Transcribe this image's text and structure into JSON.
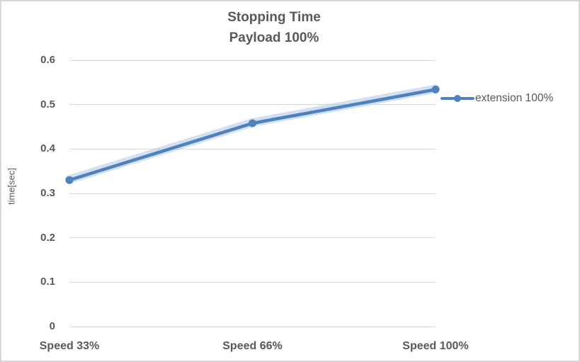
{
  "title": {
    "line1": "Stopping Time",
    "line2": "Payload 100%"
  },
  "axes": {
    "y_title": "time[sec]"
  },
  "legend": {
    "label": "extension 100%"
  },
  "colors": {
    "series": "#4F81BD",
    "series_glow": "#AFC7E5",
    "gridline": "#D9D9D9",
    "text": "#595959",
    "border": "#D7D7D7",
    "background": "#FFFFFF"
  },
  "chart_data": {
    "type": "line",
    "title": "Stopping Time",
    "subtitle": "Payload 100%",
    "categories": [
      "Speed 33%",
      "Speed 66%",
      "Speed 100%"
    ],
    "series": [
      {
        "name": "extension 100%",
        "values": [
          0.33,
          0.458,
          0.534
        ]
      }
    ],
    "xlabel": "",
    "ylabel": "time[sec]",
    "ylim": [
      0,
      0.6
    ],
    "ytick_step": 0.1,
    "ytick_labels": [
      "0",
      "0.1",
      "0.2",
      "0.3",
      "0.4",
      "0.5",
      "0.6"
    ],
    "grid": true,
    "marker": "circle",
    "legend_position": "right"
  }
}
